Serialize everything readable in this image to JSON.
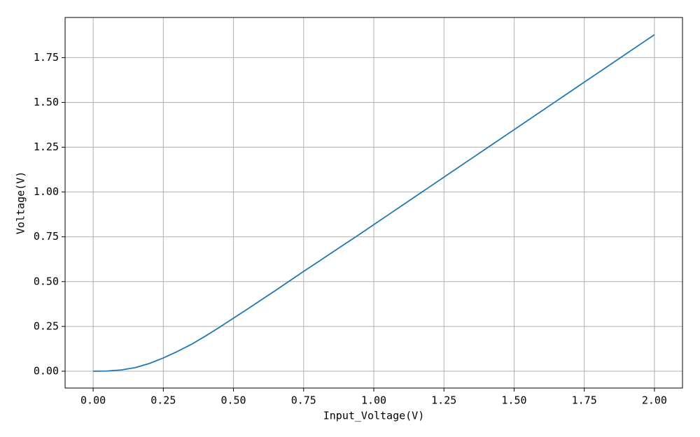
{
  "chart_data": {
    "type": "line",
    "xlabel": "Input_Voltage(V)",
    "ylabel": "Voltage(V)",
    "x": [
      0,
      0.05,
      0.1,
      0.15,
      0.2,
      0.25,
      0.3,
      0.35,
      0.4,
      0.45,
      0.5,
      0.55,
      0.6,
      0.65,
      0.7,
      0.75,
      0.8,
      0.85,
      0.9,
      0.95,
      1.0,
      1.05,
      1.1,
      1.15,
      1.2,
      1.25,
      1.3,
      1.35,
      1.4,
      1.45,
      1.5,
      1.55,
      1.6,
      1.65,
      1.7,
      1.75,
      1.8,
      1.85,
      1.9,
      1.95,
      2.0
    ],
    "series": [
      {
        "color": "#1f77b4",
        "values": [
          0,
          0.001,
          0.007,
          0.02,
          0.043,
          0.074,
          0.11,
          0.15,
          0.196,
          0.245,
          0.296,
          0.347,
          0.399,
          0.451,
          0.504,
          0.557,
          0.609,
          0.661,
          0.713,
          0.765,
          0.818,
          0.871,
          0.924,
          0.977,
          1.03,
          1.083,
          1.136,
          1.189,
          1.242,
          1.295,
          1.348,
          1.401,
          1.454,
          1.507,
          1.56,
          1.613,
          1.666,
          1.719,
          1.772,
          1.825,
          1.878
        ]
      }
    ],
    "xlim": [
      -0.1,
      2.1
    ],
    "ylim": [
      -0.094,
      1.974
    ],
    "xticks": [
      {
        "value": 0,
        "label": "0.00"
      },
      {
        "value": 0.25,
        "label": "0.25"
      },
      {
        "value": 0.5,
        "label": "0.50"
      },
      {
        "value": 0.75,
        "label": "0.75"
      },
      {
        "value": 1,
        "label": "1.00"
      },
      {
        "value": 1.25,
        "label": "1.25"
      },
      {
        "value": 1.5,
        "label": "1.50"
      },
      {
        "value": 1.75,
        "label": "1.75"
      },
      {
        "value": 2,
        "label": "2.00"
      }
    ],
    "yticks": [
      {
        "value": 0,
        "label": "0.00"
      },
      {
        "value": 0.25,
        "label": "0.25"
      },
      {
        "value": 0.5,
        "label": "0.50"
      },
      {
        "value": 0.75,
        "label": "0.75"
      },
      {
        "value": 1,
        "label": "1.00"
      },
      {
        "value": 1.25,
        "label": "1.25"
      },
      {
        "value": 1.5,
        "label": "1.50"
      },
      {
        "value": 1.75,
        "label": "1.75"
      }
    ],
    "grid": true
  }
}
